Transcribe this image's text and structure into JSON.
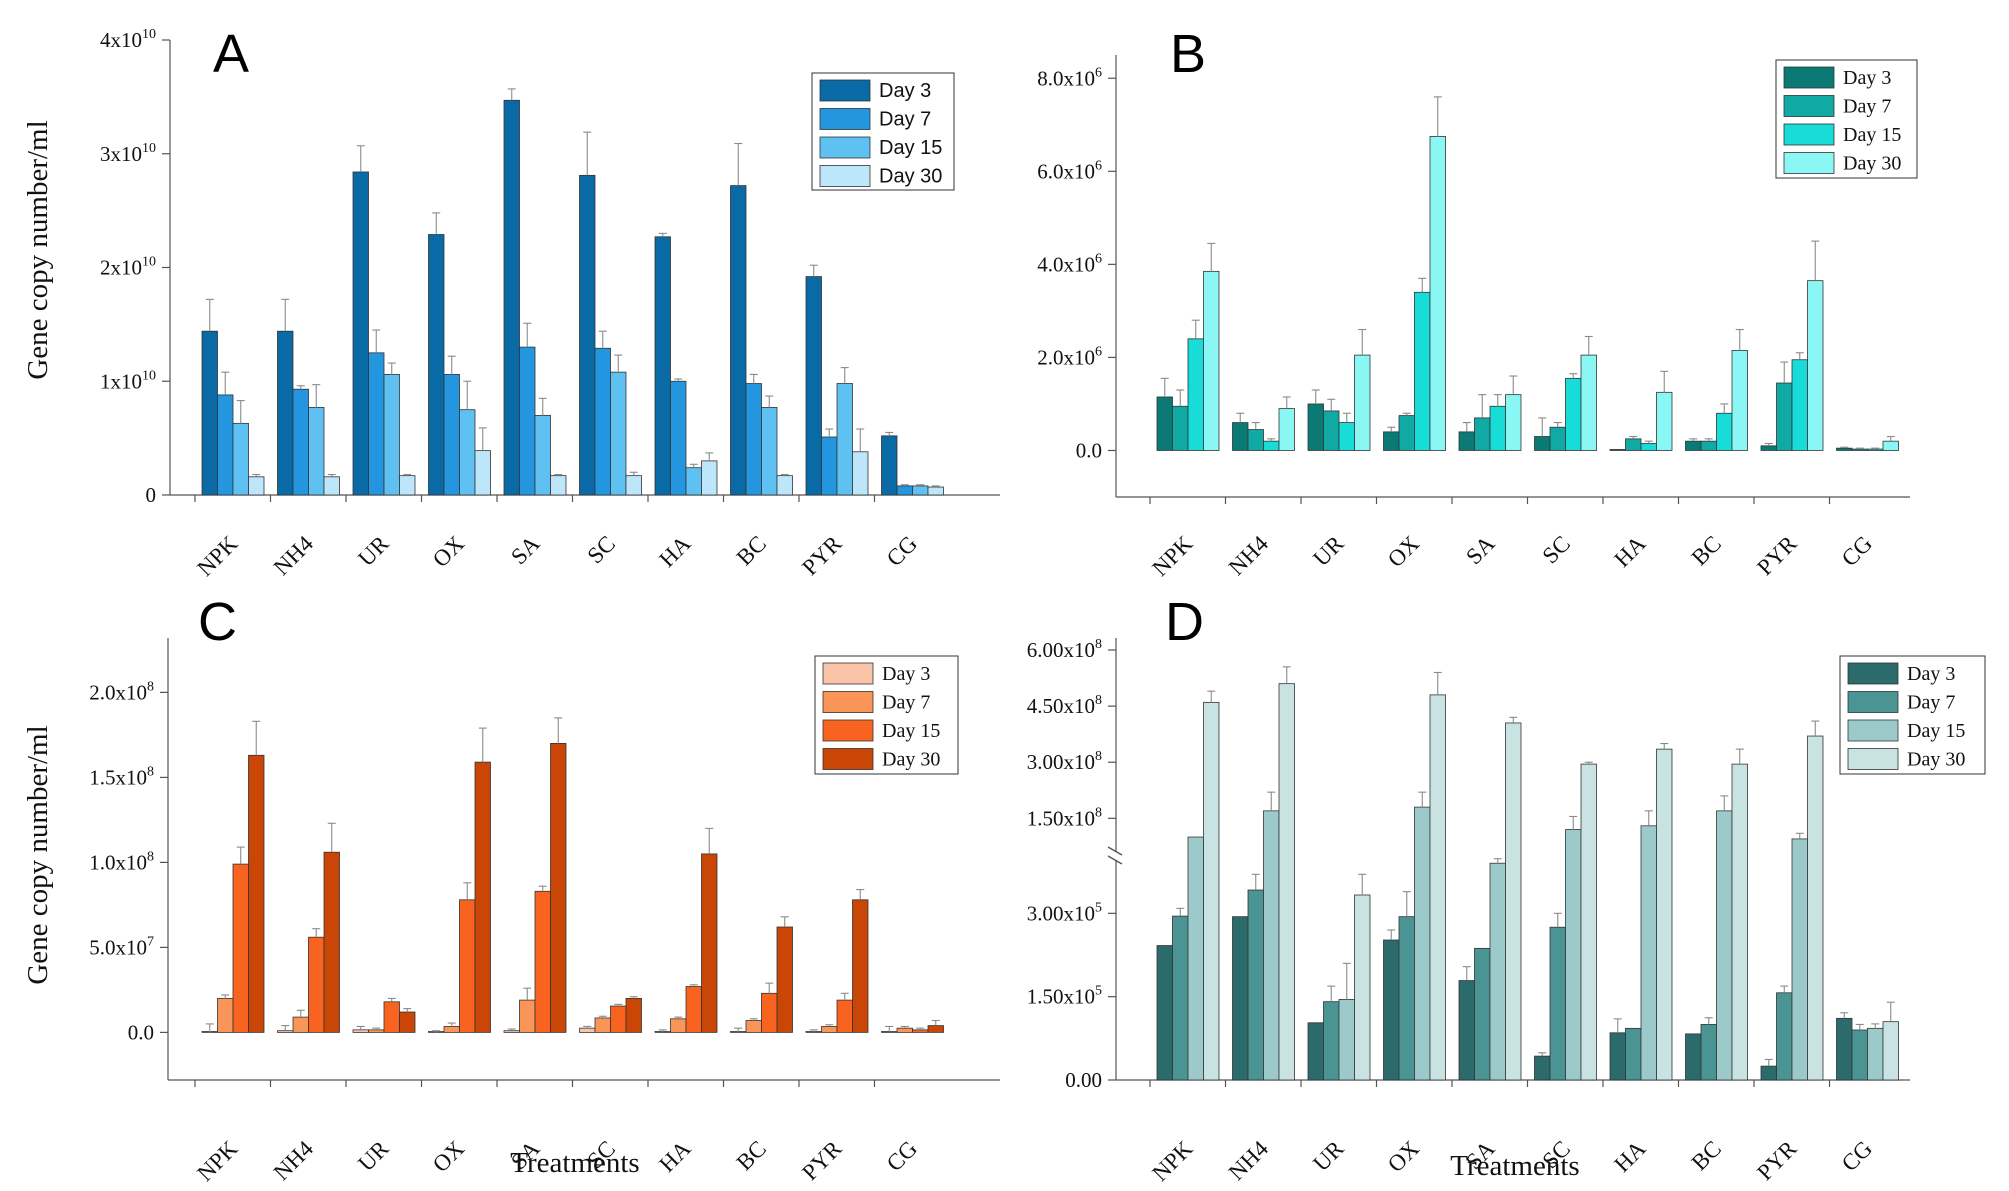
{
  "chart_data": [
    {
      "panel": "A",
      "type": "bar",
      "ylabel": "Gene copy number/ml",
      "xlabel": "",
      "categories": [
        "NPK",
        "NH4",
        "UR",
        "OX",
        "SA",
        "SC",
        "HA",
        "BC",
        "PYR",
        "CG"
      ],
      "ylim": [
        0,
        40000000000
      ],
      "yticks": [
        {
          "value": 0,
          "base": "0",
          "exp": ""
        },
        {
          "value": 10000000000,
          "base": "1x10",
          "exp": "10"
        },
        {
          "value": 20000000000,
          "base": "2x10",
          "exp": "10"
        },
        {
          "value": 30000000000,
          "base": "3x10",
          "exp": "10"
        },
        {
          "value": 40000000000,
          "base": "4x10",
          "exp": "10"
        }
      ],
      "legend_position": "top-right",
      "series": [
        {
          "name": "Day 3",
          "color": "#0a6aa6",
          "values": [
            14400000000.0,
            14400000000.0,
            28400000000.0,
            22900000000.0,
            34700000000.0,
            28100000000.0,
            22700000000.0,
            27200000000.0,
            19200000000.0,
            5200000000.0
          ],
          "errors": [
            2800000000.0,
            2800000000.0,
            2300000000.0,
            1900000000.0,
            1000000000.0,
            3800000000.0,
            300000000.0,
            3700000000.0,
            1000000000.0,
            300000000.0
          ]
        },
        {
          "name": "Day 7",
          "color": "#2496df",
          "values": [
            8800000000.0,
            9300000000.0,
            12500000000.0,
            10600000000.0,
            13000000000.0,
            12900000000.0,
            10000000000.0,
            9800000000.0,
            5100000000.0,
            800000000.0
          ],
          "errors": [
            2000000000.0,
            300000000.0,
            2000000000.0,
            1600000000.0,
            2100000000.0,
            1500000000.0,
            200000000.0,
            800000000.0,
            700000000.0,
            100000000.0
          ]
        },
        {
          "name": "Day 15",
          "color": "#5fc0f2",
          "values": [
            6300000000.0,
            7700000000.0,
            10600000000.0,
            7500000000.0,
            7000000000.0,
            10800000000.0,
            2400000000.0,
            7700000000.0,
            9800000000.0,
            800000000.0
          ],
          "errors": [
            2000000000.0,
            2000000000.0,
            1000000000.0,
            2500000000.0,
            1500000000.0,
            1500000000.0,
            300000000.0,
            1000000000.0,
            1400000000.0,
            100000000.0
          ]
        },
        {
          "name": "Day 30",
          "color": "#bde6fa",
          "values": [
            1600000000.0,
            1600000000.0,
            1700000000.0,
            3900000000.0,
            1700000000.0,
            1700000000.0,
            3000000000.0,
            1700000000.0,
            3800000000.0,
            700000000.0
          ],
          "errors": [
            200000000.0,
            200000000.0,
            100000000.0,
            2000000000.0,
            100000000.0,
            300000000.0,
            700000000.0,
            100000000.0,
            2000000000.0,
            100000000.0
          ]
        }
      ]
    },
    {
      "panel": "B",
      "type": "bar",
      "ylabel": "",
      "xlabel": "",
      "categories": [
        "NPK",
        "NH4",
        "UR",
        "OX",
        "SA",
        "SC",
        "HA",
        "BC",
        "PYR",
        "CG"
      ],
      "ylim": [
        -1000000,
        8500000
      ],
      "yticks": [
        {
          "value": 0,
          "base": "0.0",
          "exp": ""
        },
        {
          "value": 2000000,
          "base": "2.0x10",
          "exp": "6"
        },
        {
          "value": 4000000,
          "base": "4.0x10",
          "exp": "6"
        },
        {
          "value": 6000000,
          "base": "6.0x10",
          "exp": "6"
        },
        {
          "value": 8000000,
          "base": "8.0x10",
          "exp": "6"
        }
      ],
      "legend_position": "top-right",
      "series": [
        {
          "name": "Day 3",
          "color": "#0b7a74",
          "values": [
            1150000.0,
            600000.0,
            1000000.0,
            400000.0,
            400000.0,
            300000.0,
            0.0,
            200000.0,
            100000.0,
            50000.0
          ],
          "errors": [
            400000.0,
            200000.0,
            300000.0,
            100000.0,
            200000.0,
            400000.0,
            0.0,
            50000.0,
            50000.0,
            20000.0
          ]
        },
        {
          "name": "Day 7",
          "color": "#10a9a3",
          "values": [
            950000.0,
            450000.0,
            850000.0,
            750000.0,
            700000.0,
            500000.0,
            250000.0,
            200000.0,
            1450000.0,
            30000.0
          ],
          "errors": [
            350000.0,
            150000.0,
            250000.0,
            50000.0,
            500000.0,
            100000.0,
            50000.0,
            50000.0,
            450000.0,
            20000.0
          ]
        },
        {
          "name": "Day 15",
          "color": "#18dcd8",
          "values": [
            2400000.0,
            200000.0,
            600000.0,
            3400000.0,
            950000.0,
            1550000.0,
            150000.0,
            800000.0,
            1950000.0,
            30000.0
          ],
          "errors": [
            400000.0,
            50000.0,
            200000.0,
            300000.0,
            250000.0,
            100000.0,
            50000.0,
            200000.0,
            150000.0,
            20000.0
          ]
        },
        {
          "name": "Day 30",
          "color": "#8bf7f5",
          "values": [
            3850000.0,
            900000.0,
            2050000.0,
            6750000.0,
            1200000.0,
            2050000.0,
            1250000.0,
            2150000.0,
            3650000.0,
            200000.0
          ],
          "errors": [
            600000.0,
            250000.0,
            550000.0,
            850000.0,
            400000.0,
            400000.0,
            450000.0,
            450000.0,
            850000.0,
            100000.0
          ]
        }
      ]
    },
    {
      "panel": "C",
      "type": "bar",
      "ylabel": "Gene copy number/ml",
      "xlabel": "Treatments",
      "categories": [
        "NPK",
        "NH4",
        "UR",
        "OX",
        "SA",
        "SC",
        "HA",
        "BC",
        "PYR",
        "CG"
      ],
      "ylim": [
        -28000000,
        232000000
      ],
      "yticks": [
        {
          "value": 0,
          "base": "0.0",
          "exp": ""
        },
        {
          "value": 50000000,
          "base": "5.0x10",
          "exp": "7"
        },
        {
          "value": 100000000,
          "base": "1.0x10",
          "exp": "8"
        },
        {
          "value": 150000000,
          "base": "1.5x10",
          "exp": "8"
        },
        {
          "value": 200000000,
          "base": "2.0x10",
          "exp": "8"
        }
      ],
      "legend_position": "top-right",
      "series": [
        {
          "name": "Day 3",
          "color": "#fbc4a8",
          "values": [
            0,
            1000000.0,
            1500000.0,
            0,
            1000000.0,
            2500000.0,
            500000.0,
            500000.0,
            500000.0,
            500000.0
          ],
          "errors": [
            5000000.0,
            3000000.0,
            2000000.0,
            1000000.0,
            1000000.0,
            1000000.0,
            1000000.0,
            2000000.0,
            1000000.0,
            3000000.0
          ]
        },
        {
          "name": "Day 7",
          "color": "#f99559",
          "values": [
            20000000.0,
            9000000.0,
            1500000.0,
            3500000.0,
            19000000.0,
            8500000.0,
            8000000.0,
            7000000.0,
            3500000.0,
            2500000.0
          ],
          "errors": [
            2000000.0,
            4000000.0,
            1000000.0,
            2000000.0,
            7000000.0,
            1000000.0,
            1000000.0,
            1000000.0,
            1000000.0,
            1000000.0
          ]
        },
        {
          "name": "Day 15",
          "color": "#f8641f",
          "values": [
            99000000.0,
            56000000.0,
            18000000.0,
            78000000.0,
            83000000.0,
            15500000.0,
            27000000.0,
            23000000.0,
            19000000.0,
            1500000.0
          ],
          "errors": [
            10000000.0,
            5000000.0,
            2000000.0,
            10000000.0,
            3000000.0,
            1000000.0,
            1000000.0,
            6000000.0,
            4000000.0,
            1000000.0
          ]
        },
        {
          "name": "Day 30",
          "color": "#c94606",
          "values": [
            163000000.0,
            106000000.0,
            12000000.0,
            159000000.0,
            170000000.0,
            20000000.0,
            105000000.0,
            62000000.0,
            78000000.0,
            4000000.0
          ],
          "errors": [
            20000000.0,
            17000000.0,
            2000000.0,
            20000000.0,
            15000000.0,
            1000000.0,
            15000000.0,
            6000000.0,
            6000000.0,
            3000000.0
          ]
        }
      ]
    },
    {
      "panel": "D",
      "type": "bar",
      "ylabel": "",
      "xlabel": "Treatments",
      "categories": [
        "NPK",
        "NH4",
        "UR",
        "OX",
        "SA",
        "SC",
        "HA",
        "BC",
        "PYR",
        "CG"
      ],
      "broken_axis": true,
      "yticks_lower": [
        {
          "value": 0,
          "base": "0.00",
          "exp": ""
        },
        {
          "value": 150000,
          "base": "1.50x10",
          "exp": "5"
        },
        {
          "value": 300000,
          "base": "3.00x10",
          "exp": "5"
        }
      ],
      "yticks_upper": [
        {
          "value": 150000000,
          "base": "1.50x10",
          "exp": "8"
        },
        {
          "value": 300000000,
          "base": "3.00x10",
          "exp": "8"
        },
        {
          "value": 450000000,
          "base": "4.50x10",
          "exp": "8"
        },
        {
          "value": 600000000,
          "base": "6.00x10",
          "exp": "8"
        }
      ],
      "legend_position": "top-right",
      "series": [
        {
          "name": "Day 3",
          "color": "#2b6b6b",
          "values": [
            242000,
            294000,
            103000,
            252000,
            179000,
            43000,
            85000,
            83000,
            25000,
            111000
          ],
          "errors": [
            0,
            0,
            0,
            18000,
            25000,
            6000,
            25000,
            0,
            12000,
            10000
          ]
        },
        {
          "name": "Day 7",
          "color": "#4a9494",
          "values": [
            295000,
            342000,
            141000,
            294000,
            237000,
            275000,
            93000,
            100000,
            157000,
            90000
          ],
          "errors": [
            14000,
            39000,
            28000,
            45000,
            0,
            25000,
            0,
            12000,
            12000,
            10000
          ]
        },
        {
          "name": "Day 15",
          "color": "#9ccaca",
          "values": [
            100000000,
            170000000,
            145000,
            180000000,
            30000000,
            120000000,
            130000000,
            170000000,
            95000000,
            93000
          ],
          "errors": [
            0,
            50000000,
            65000,
            40000000,
            12000000,
            35000000,
            40000000,
            40000000,
            15000000,
            8000
          ]
        },
        {
          "name": "Day 30",
          "color": "#c9e2e2",
          "values": [
            460000000,
            510000000,
            333000,
            480000000,
            405000000,
            295000000,
            335000000,
            295000000,
            370000000,
            105000
          ],
          "errors": [
            30000000,
            45000000,
            28000,
            60000000,
            15000000,
            5000000,
            15000000,
            40000000,
            40000000,
            35000
          ]
        }
      ]
    }
  ]
}
